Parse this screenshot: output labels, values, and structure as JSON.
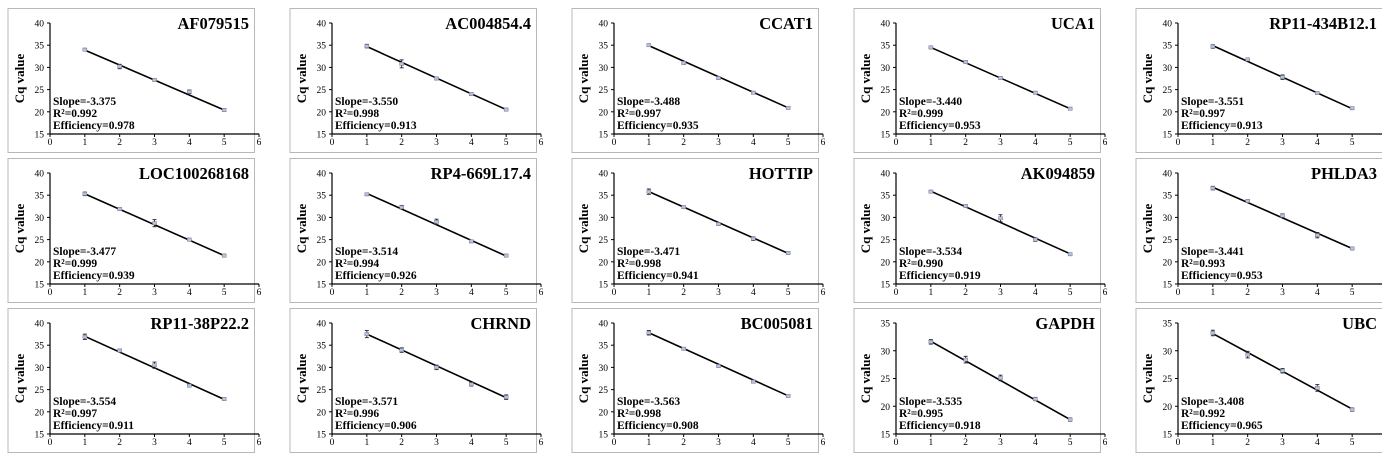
{
  "chart_data": [
    {
      "type": "scatter",
      "title": "AF079515",
      "ylabel": "Cq value",
      "ylim": [
        15,
        40
      ],
      "yticks": [
        15,
        20,
        25,
        30,
        35,
        40
      ],
      "xlim": [
        0,
        6
      ],
      "xticks": [
        0,
        1,
        2,
        3,
        4,
        5,
        6
      ],
      "x": [
        1,
        2,
        3,
        4,
        5
      ],
      "y": [
        34.0,
        30.2,
        27.2,
        24.5,
        20.4
      ],
      "err": [
        0.3,
        0.5,
        0.3,
        0.4,
        0.3
      ],
      "fit": {
        "y1": 33.9,
        "y5": 20.4
      },
      "slope_text": "Slope=-3.375",
      "r2_text": "R²=0.992",
      "efficiency_text": "Efficiency=0.978"
    },
    {
      "type": "scatter",
      "title": "AC004854.4",
      "ylabel": "Cq value",
      "ylim": [
        15,
        40
      ],
      "yticks": [
        15,
        20,
        25,
        30,
        35,
        40
      ],
      "xlim": [
        0,
        6
      ],
      "xticks": [
        0,
        1,
        2,
        3,
        4,
        5,
        6
      ],
      "x": [
        1,
        2,
        3,
        4,
        5
      ],
      "y": [
        34.8,
        30.8,
        27.5,
        24.0,
        20.5
      ],
      "err": [
        0.4,
        0.9,
        0.3,
        0.3,
        0.3
      ],
      "fit": {
        "y1": 34.7,
        "y5": 20.5
      },
      "slope_text": "Slope=-3.550",
      "r2_text": "R²=0.998",
      "efficiency_text": "Efficiency=0.913"
    },
    {
      "type": "scatter",
      "title": "CCAT1",
      "ylabel": "Cq value",
      "ylim": [
        15,
        40
      ],
      "yticks": [
        15,
        20,
        25,
        30,
        35,
        40
      ],
      "xlim": [
        0,
        6
      ],
      "xticks": [
        0,
        1,
        2,
        3,
        4,
        5,
        6
      ],
      "x": [
        1,
        2,
        3,
        4,
        5
      ],
      "y": [
        35.0,
        31.0,
        27.6,
        24.3,
        20.9
      ],
      "err": [
        0.3,
        0.3,
        0.3,
        0.3,
        0.3
      ],
      "fit": {
        "y1": 34.9,
        "y5": 20.9
      },
      "slope_text": "Slope=-3.488",
      "r2_text": "R²=0.997",
      "efficiency_text": "Efficiency=0.935"
    },
    {
      "type": "scatter",
      "title": "UCA1",
      "ylabel": "Cq value",
      "ylim": [
        15,
        40
      ],
      "yticks": [
        15,
        20,
        25,
        30,
        35,
        40
      ],
      "xlim": [
        0,
        6
      ],
      "xticks": [
        0,
        1,
        2,
        3,
        4,
        5,
        6
      ],
      "x": [
        1,
        2,
        3,
        4,
        5
      ],
      "y": [
        34.5,
        31.2,
        27.6,
        24.3,
        20.7
      ],
      "err": [
        0.3,
        0.3,
        0.3,
        0.3,
        0.3
      ],
      "fit": {
        "y1": 34.5,
        "y5": 20.7
      },
      "slope_text": "Slope=-3.440",
      "r2_text": "R²=0.999",
      "efficiency_text": "Efficiency=0.953"
    },
    {
      "type": "scatter",
      "title": "RP11-434B12.1",
      "ylabel": "Cq value",
      "ylim": [
        15,
        40
      ],
      "yticks": [
        15,
        20,
        25,
        30,
        35,
        40
      ],
      "xlim": [
        0,
        6
      ],
      "xticks": [
        0,
        1,
        2,
        3,
        4,
        5,
        6
      ],
      "x": [
        1,
        2,
        3,
        4,
        5
      ],
      "y": [
        34.7,
        31.8,
        27.8,
        24.2,
        20.8
      ],
      "err": [
        0.4,
        0.3,
        0.5,
        0.3,
        0.3
      ],
      "fit": {
        "y1": 34.9,
        "y5": 20.7
      },
      "slope_text": "Slope=-3.551",
      "r2_text": "R²=0.997",
      "efficiency_text": "Efficiency=0.913"
    },
    {
      "type": "scatter",
      "title": "LOC100268168",
      "ylabel": "Cq value",
      "ylim": [
        15,
        40
      ],
      "yticks": [
        15,
        20,
        25,
        30,
        35,
        40
      ],
      "xlim": [
        0,
        6
      ],
      "xticks": [
        0,
        1,
        2,
        3,
        4,
        5,
        6
      ],
      "x": [
        1,
        2,
        3,
        4,
        5
      ],
      "y": [
        35.3,
        31.9,
        28.7,
        25.0,
        21.4
      ],
      "err": [
        0.4,
        0.3,
        0.8,
        0.3,
        0.3
      ],
      "fit": {
        "y1": 35.3,
        "y5": 21.4
      },
      "slope_text": "Slope=-3.477",
      "r2_text": "R²=0.999",
      "efficiency_text": "Efficiency=0.939"
    },
    {
      "type": "scatter",
      "title": "RP4-669L17.4",
      "ylabel": "Cq value",
      "ylim": [
        15,
        40
      ],
      "yticks": [
        15,
        20,
        25,
        30,
        35,
        40
      ],
      "xlim": [
        0,
        6
      ],
      "xticks": [
        0,
        1,
        2,
        3,
        4,
        5,
        6
      ],
      "x": [
        1,
        2,
        3,
        4,
        5
      ],
      "y": [
        35.2,
        32.3,
        29.0,
        24.6,
        21.4
      ],
      "err": [
        0.3,
        0.4,
        0.6,
        0.3,
        0.3
      ],
      "fit": {
        "y1": 35.4,
        "y5": 21.3
      },
      "slope_text": "Slope=-3.514",
      "r2_text": "R²=0.994",
      "efficiency_text": "Efficiency=0.926"
    },
    {
      "type": "scatter",
      "title": "HOTTIP",
      "ylabel": "Cq value",
      "ylim": [
        15,
        40
      ],
      "yticks": [
        15,
        20,
        25,
        30,
        35,
        40
      ],
      "xlim": [
        0,
        6
      ],
      "xticks": [
        0,
        1,
        2,
        3,
        4,
        5,
        6
      ],
      "x": [
        1,
        2,
        3,
        4,
        5
      ],
      "y": [
        35.8,
        32.3,
        28.5,
        25.2,
        22.0
      ],
      "err": [
        0.6,
        0.3,
        0.3,
        0.4,
        0.3
      ],
      "fit": {
        "y1": 35.8,
        "y5": 21.9
      },
      "slope_text": "Slope=-3.471",
      "r2_text": "R²=0.998",
      "efficiency_text": "Efficiency=0.941"
    },
    {
      "type": "scatter",
      "title": "AK094859",
      "ylabel": "Cq value",
      "ylim": [
        15,
        40
      ],
      "yticks": [
        15,
        20,
        25,
        30,
        35,
        40
      ],
      "xlim": [
        0,
        6
      ],
      "xticks": [
        0,
        1,
        2,
        3,
        4,
        5,
        6
      ],
      "x": [
        1,
        2,
        3,
        4,
        5
      ],
      "y": [
        35.8,
        32.6,
        29.8,
        25.0,
        21.7
      ],
      "err": [
        0.3,
        0.3,
        0.8,
        0.4,
        0.3
      ],
      "fit": {
        "y1": 35.9,
        "y5": 21.8
      },
      "slope_text": "Slope=-3.534",
      "r2_text": "R²=0.990",
      "efficiency_text": "Efficiency=0.919"
    },
    {
      "type": "scatter",
      "title": "PHLDA3",
      "ylabel": "Cq value",
      "ylim": [
        15,
        40
      ],
      "yticks": [
        15,
        20,
        25,
        30,
        35,
        40
      ],
      "xlim": [
        0,
        6
      ],
      "xticks": [
        0,
        1,
        2,
        3,
        4,
        5,
        6
      ],
      "x": [
        1,
        2,
        3,
        4,
        5
      ],
      "y": [
        36.6,
        33.7,
        30.4,
        26.0,
        23.0
      ],
      "err": [
        0.4,
        0.3,
        0.4,
        0.6,
        0.3
      ],
      "fit": {
        "y1": 36.8,
        "y5": 23.0
      },
      "slope_text": "Slope=-3.441",
      "r2_text": "R²=0.993",
      "efficiency_text": "Efficiency=0.953"
    },
    {
      "type": "scatter",
      "title": "RP11-38P22.2",
      "ylabel": "Cq value",
      "ylim": [
        15,
        40
      ],
      "yticks": [
        15,
        20,
        25,
        30,
        35,
        40
      ],
      "xlim": [
        0,
        6
      ],
      "xticks": [
        0,
        1,
        2,
        3,
        4,
        5,
        6
      ],
      "x": [
        1,
        2,
        3,
        4,
        5
      ],
      "y": [
        36.9,
        33.8,
        30.5,
        25.9,
        22.9
      ],
      "err": [
        0.6,
        0.3,
        0.7,
        0.3,
        0.3
      ],
      "fit": {
        "y1": 37.0,
        "y5": 22.8
      },
      "slope_text": "Slope=-3.554",
      "r2_text": "R²=0.997",
      "efficiency_text": "Efficiency=0.911"
    },
    {
      "type": "scatter",
      "title": "CHRND",
      "ylabel": "Cq value",
      "ylim": [
        15,
        40
      ],
      "yticks": [
        15,
        20,
        25,
        30,
        35,
        40
      ],
      "xlim": [
        0,
        6
      ],
      "xticks": [
        0,
        1,
        2,
        3,
        4,
        5,
        6
      ],
      "x": [
        1,
        2,
        3,
        4,
        5
      ],
      "y": [
        37.5,
        33.9,
        30.0,
        26.2,
        23.3
      ],
      "err": [
        0.8,
        0.5,
        0.5,
        0.4,
        0.5
      ],
      "fit": {
        "y1": 37.5,
        "y5": 23.2
      },
      "slope_text": "Slope=-3.571",
      "r2_text": "R²=0.996",
      "efficiency_text": "Efficiency=0.906"
    },
    {
      "type": "scatter",
      "title": "BC005081",
      "ylabel": "Cq value",
      "ylim": [
        15,
        40
      ],
      "yticks": [
        15,
        20,
        25,
        30,
        35,
        40
      ],
      "xlim": [
        0,
        6
      ],
      "xticks": [
        0,
        1,
        2,
        3,
        4,
        5,
        6
      ],
      "x": [
        1,
        2,
        3,
        4,
        5
      ],
      "y": [
        37.8,
        34.2,
        30.3,
        26.8,
        23.6
      ],
      "err": [
        0.5,
        0.3,
        0.3,
        0.3,
        0.3
      ],
      "fit": {
        "y1": 37.8,
        "y5": 23.6
      },
      "slope_text": "Slope=-3.563",
      "r2_text": "R²=0.998",
      "efficiency_text": "Efficiency=0.908"
    },
    {
      "type": "scatter",
      "title": "GAPDH",
      "ylabel": "Cq value",
      "ylim": [
        15,
        35
      ],
      "yticks": [
        15,
        20,
        25,
        30,
        35
      ],
      "xlim": [
        0,
        6
      ],
      "xticks": [
        0,
        1,
        2,
        3,
        4,
        5,
        6
      ],
      "x": [
        1,
        2,
        3,
        4,
        5
      ],
      "y": [
        31.6,
        28.4,
        25.1,
        21.3,
        17.6
      ],
      "err": [
        0.4,
        0.6,
        0.5,
        0.3,
        0.3
      ],
      "fit": {
        "y1": 31.7,
        "y5": 17.6
      },
      "slope_text": "Slope=-3.535",
      "r2_text": "R²=0.995",
      "efficiency_text": "Efficiency=0.918"
    },
    {
      "type": "scatter",
      "title": "UBC",
      "ylabel": "Cq value",
      "ylim": [
        15,
        35
      ],
      "yticks": [
        15,
        20,
        25,
        30,
        35
      ],
      "xlim": [
        0,
        6
      ],
      "xticks": [
        0,
        1,
        2,
        3,
        4,
        5,
        6
      ],
      "x": [
        1,
        2,
        3,
        4,
        5
      ],
      "y": [
        33.2,
        29.3,
        26.4,
        23.3,
        19.4
      ],
      "err": [
        0.5,
        0.6,
        0.4,
        0.6,
        0.3
      ],
      "fit": {
        "y1": 33.1,
        "y5": 19.5
      },
      "slope_text": "Slope=-3.408",
      "r2_text": "R²=0.992",
      "efficiency_text": "Efficiency=0.965"
    }
  ]
}
